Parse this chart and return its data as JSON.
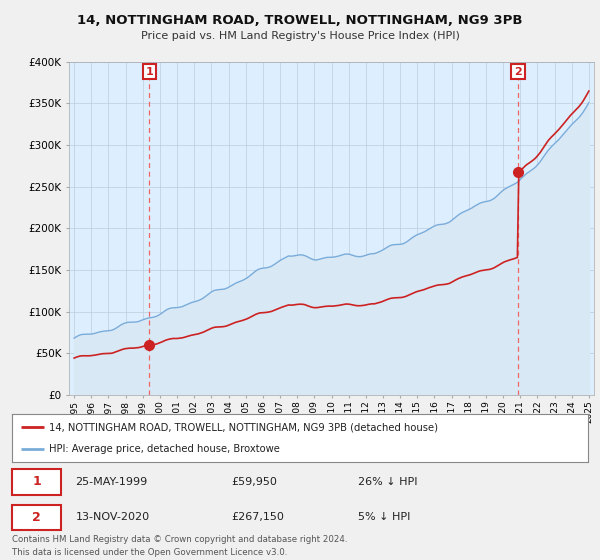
{
  "title": "14, NOTTINGHAM ROAD, TROWELL, NOTTINGHAM, NG9 3PB",
  "subtitle": "Price paid vs. HM Land Registry's House Price Index (HPI)",
  "legend_line1": "14, NOTTINGHAM ROAD, TROWELL, NOTTINGHAM, NG9 3PB (detached house)",
  "legend_line2": "HPI: Average price, detached house, Broxtowe",
  "annotation1_date": "25-MAY-1999",
  "annotation1_price": "£59,950",
  "annotation1_hpi": "26% ↓ HPI",
  "annotation2_date": "13-NOV-2020",
  "annotation2_price": "£267,150",
  "annotation2_hpi": "5% ↓ HPI",
  "footer": "Contains HM Land Registry data © Crown copyright and database right 2024.\nThis data is licensed under the Open Government Licence v3.0.",
  "sale1_year": 1999.38,
  "sale1_price": 59950,
  "sale2_year": 2020.87,
  "sale2_price": 267150,
  "hpi_color": "#7aacda",
  "hpi_fill_color": "#d9e8f5",
  "price_color": "#cc2222",
  "background_color": "#f0f0f0",
  "plot_background": "#ddeeff",
  "ylim": [
    0,
    400000
  ],
  "xlim_start": 1994.7,
  "xlim_end": 2025.3
}
